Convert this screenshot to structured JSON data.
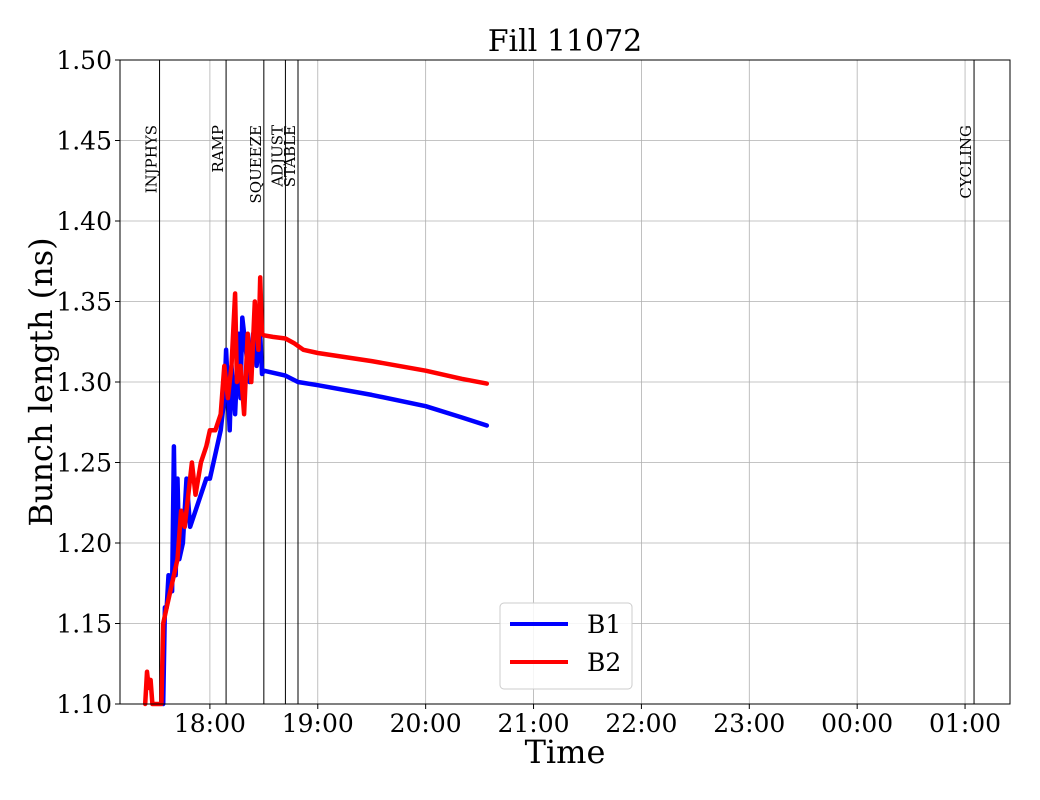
{
  "chart_data": {
    "type": "line",
    "title": "Fill 11072",
    "xlabel": "Time",
    "ylabel": "Bunch length (ns)",
    "xlim": [
      "17:10",
      "01:25"
    ],
    "ylim": [
      1.1,
      1.5
    ],
    "grid": true,
    "legend_position": "lower-center",
    "yticks": [
      "1.10",
      "1.15",
      "1.20",
      "1.25",
      "1.30",
      "1.35",
      "1.40",
      "1.45",
      "1.50"
    ],
    "xticks": [
      "18:00",
      "19:00",
      "20:00",
      "21:00",
      "22:00",
      "23:00",
      "00:00",
      "01:00"
    ],
    "phases": [
      {
        "label": "INJPHYS",
        "time": "17:32"
      },
      {
        "label": "RAMP",
        "time": "18:09"
      },
      {
        "label": "SQUEEZE",
        "time": "18:30"
      },
      {
        "label": "ADJUST",
        "time": "18:42"
      },
      {
        "label": "STABLE",
        "time": "18:49"
      },
      {
        "label": "CYCLING",
        "time": "01:05"
      }
    ],
    "series": [
      {
        "name": "B1",
        "color": "#0000ff",
        "points": [
          [
            "17:34",
            1.1
          ],
          [
            "17:35",
            1.16
          ],
          [
            "17:36",
            1.16
          ],
          [
            "17:37",
            1.18
          ],
          [
            "17:38",
            1.17
          ],
          [
            "17:39",
            1.17
          ],
          [
            "17:40",
            1.26
          ],
          [
            "17:41",
            1.18
          ],
          [
            "17:42",
            1.24
          ],
          [
            "17:43",
            1.19
          ],
          [
            "17:45",
            1.2
          ],
          [
            "17:47",
            1.24
          ],
          [
            "17:49",
            1.21
          ],
          [
            "17:52",
            1.22
          ],
          [
            "17:55",
            1.23
          ],
          [
            "17:58",
            1.24
          ],
          [
            "18:00",
            1.24
          ],
          [
            "18:02",
            1.25
          ],
          [
            "18:04",
            1.26
          ],
          [
            "18:06",
            1.27
          ],
          [
            "18:08",
            1.29
          ],
          [
            "18:09",
            1.32
          ],
          [
            "18:11",
            1.27
          ],
          [
            "18:12",
            1.31
          ],
          [
            "18:14",
            1.28
          ],
          [
            "18:16",
            1.33
          ],
          [
            "18:17",
            1.29
          ],
          [
            "18:18",
            1.34
          ],
          [
            "18:20",
            1.32
          ],
          [
            "18:22",
            1.3
          ],
          [
            "18:24",
            1.33
          ],
          [
            "18:26",
            1.31
          ],
          [
            "18:28",
            1.33
          ],
          [
            "18:29",
            1.305
          ],
          [
            "18:30",
            1.307
          ],
          [
            "18:42",
            1.304
          ],
          [
            "18:49",
            1.3
          ],
          [
            "19:00",
            1.298
          ],
          [
            "19:30",
            1.292
          ],
          [
            "20:00",
            1.285
          ],
          [
            "20:20",
            1.278
          ],
          [
            "20:34",
            1.273
          ]
        ]
      },
      {
        "name": "B2",
        "color": "#ff0000",
        "points": [
          [
            "17:24",
            1.1
          ],
          [
            "17:25",
            1.12
          ],
          [
            "17:26",
            1.11
          ],
          [
            "17:27",
            1.115
          ],
          [
            "17:28",
            1.1
          ],
          [
            "17:33",
            1.1
          ],
          [
            "17:34",
            1.15
          ],
          [
            "17:36",
            1.16
          ],
          [
            "17:38",
            1.17
          ],
          [
            "17:40",
            1.18
          ],
          [
            "17:42",
            1.19
          ],
          [
            "17:44",
            1.22
          ],
          [
            "17:46",
            1.21
          ],
          [
            "17:48",
            1.23
          ],
          [
            "17:50",
            1.25
          ],
          [
            "17:52",
            1.23
          ],
          [
            "17:55",
            1.25
          ],
          [
            "17:58",
            1.26
          ],
          [
            "18:00",
            1.27
          ],
          [
            "18:03",
            1.27
          ],
          [
            "18:06",
            1.28
          ],
          [
            "18:08",
            1.31
          ],
          [
            "18:10",
            1.29
          ],
          [
            "18:12",
            1.31
          ],
          [
            "18:14",
            1.355
          ],
          [
            "18:15",
            1.3
          ],
          [
            "18:17",
            1.31
          ],
          [
            "18:19",
            1.28
          ],
          [
            "18:21",
            1.33
          ],
          [
            "18:23",
            1.3
          ],
          [
            "18:25",
            1.35
          ],
          [
            "18:27",
            1.32
          ],
          [
            "18:28",
            1.365
          ],
          [
            "18:29",
            1.33
          ],
          [
            "18:30",
            1.329
          ],
          [
            "18:35",
            1.328
          ],
          [
            "18:42",
            1.327
          ],
          [
            "18:47",
            1.324
          ],
          [
            "18:52",
            1.32
          ],
          [
            "19:00",
            1.318
          ],
          [
            "19:30",
            1.313
          ],
          [
            "20:00",
            1.307
          ],
          [
            "20:20",
            1.302
          ],
          [
            "20:34",
            1.299
          ]
        ]
      }
    ]
  }
}
